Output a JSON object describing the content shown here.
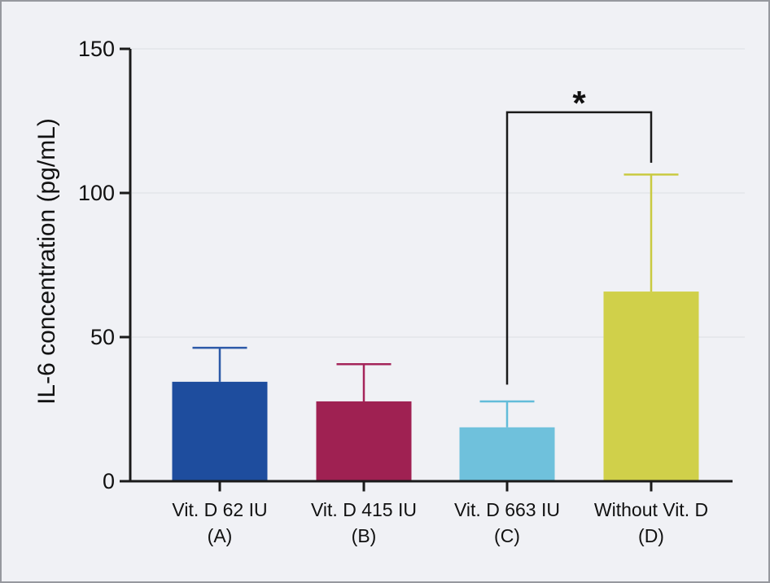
{
  "window": {
    "background": "#f0f1f5",
    "border_color": "#96989e"
  },
  "chart_data": {
    "type": "bar",
    "title": "",
    "xlabel": "",
    "ylabel": "IL-6 concentration (pg/mL)",
    "ylim": [
      0,
      150
    ],
    "yticks": [
      0,
      50,
      100,
      150
    ],
    "grid": true,
    "legend": false,
    "categories": [
      {
        "label": "Vit. D 62 IU",
        "sub": "(A)"
      },
      {
        "label": "Vit. D 415 IU",
        "sub": "(B)"
      },
      {
        "label": "Vit. D 663 IU",
        "sub": "(C)"
      },
      {
        "label": "Without Vit. D",
        "sub": "(D)"
      }
    ],
    "series": [
      {
        "name": "IL-6 concentration (pg/mL)",
        "values": [
          34.5,
          27.7,
          18.7,
          65.8
        ],
        "error_plus": [
          11.8,
          12.9,
          9.0,
          40.6
        ]
      }
    ],
    "bar_colors": [
      "#1e4d9e",
      "#9f2152",
      "#6fc1dc",
      "#d0d04a"
    ],
    "error_colors": [
      "#2d5aa8",
      "#a5255a",
      "#62bcd9",
      "#c9ca41"
    ],
    "axis_color": "#1a1a1a",
    "grid_color": "#e3e5ea",
    "text_color": "#111111",
    "significance": {
      "pair": [
        2,
        3
      ],
      "label": "*",
      "bar_value": 128,
      "left_drop_value": 33.5,
      "right_drop_value": 110.5
    }
  }
}
